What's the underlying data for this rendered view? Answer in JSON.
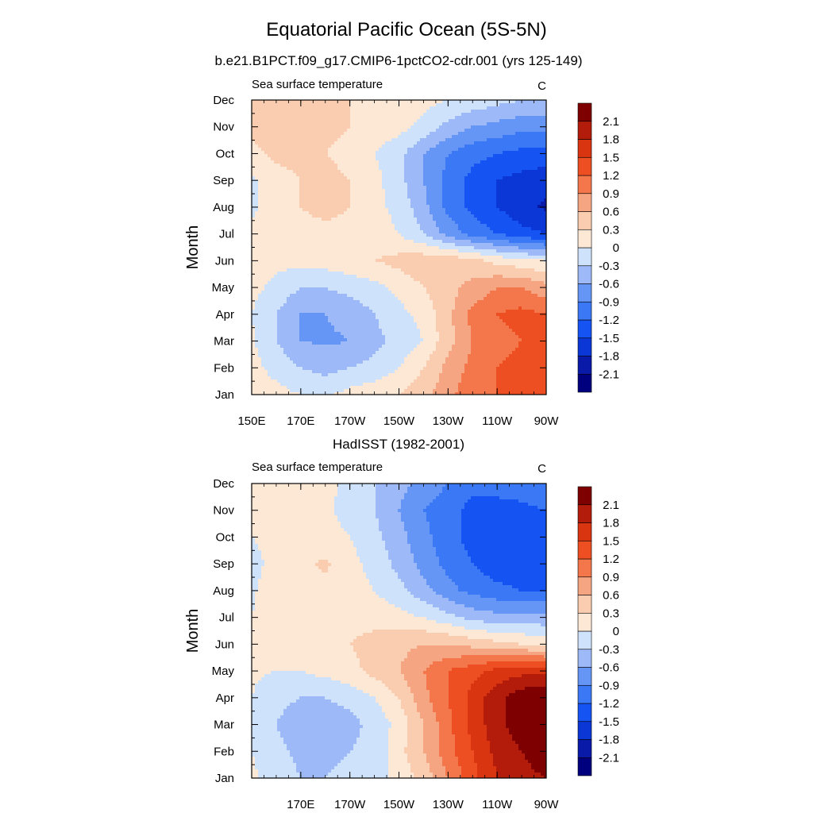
{
  "figure": {
    "title": "Equatorial Pacific Ocean (5S-5N)"
  },
  "chart_data": [
    {
      "type": "heatmap",
      "title": "b.e21.B1PCT.f09_g17.CMIP6-1pctCO2-cdr.001 (yrs 125-149)",
      "left_string": "Sea surface temperature",
      "right_string": "C",
      "xlabel": "",
      "ylabel": "Month",
      "x_values": [
        150,
        160,
        170,
        180,
        190,
        200,
        210,
        220,
        230,
        240,
        250,
        260,
        270
      ],
      "xlim": [
        150,
        270
      ],
      "x_ticks": [
        150,
        170,
        190,
        210,
        230,
        250,
        270
      ],
      "x_tick_labels": [
        "150E",
        "170E",
        "170W",
        "150W",
        "130W",
        "110W",
        "90W"
      ],
      "y_tick_labels": [
        "Jan",
        "Feb",
        "Mar",
        "Apr",
        "May",
        "Jun",
        "Jul",
        "Aug",
        "Sep",
        "Oct",
        "Nov",
        "Dec"
      ],
      "z": [
        [
          0.15,
          0.1,
          0.0,
          -0.05,
          0.1,
          0.2,
          0.3,
          0.5,
          0.8,
          1.1,
          1.2,
          1.3,
          1.3
        ],
        [
          0.1,
          -0.1,
          -0.3,
          -0.4,
          -0.3,
          -0.2,
          0.0,
          0.3,
          0.7,
          1.0,
          1.2,
          1.3,
          1.3
        ],
        [
          0.05,
          -0.3,
          -0.6,
          -0.65,
          -0.6,
          -0.4,
          -0.2,
          0.0,
          0.5,
          0.9,
          1.1,
          1.2,
          1.2
        ],
        [
          0.0,
          -0.3,
          -0.6,
          -0.6,
          -0.5,
          -0.3,
          -0.1,
          0.1,
          0.5,
          1.0,
          1.2,
          1.3,
          1.2
        ],
        [
          0.1,
          -0.1,
          -0.3,
          -0.3,
          -0.2,
          -0.1,
          0.1,
          0.3,
          0.5,
          0.7,
          0.9,
          0.9,
          0.7
        ],
        [
          0.15,
          0.1,
          0.1,
          0.15,
          0.2,
          0.3,
          0.4,
          0.5,
          0.5,
          0.4,
          0.2,
          0.1,
          0.0
        ],
        [
          0.05,
          0.15,
          0.2,
          0.2,
          0.2,
          0.15,
          0.0,
          -0.3,
          -0.7,
          -1.0,
          -1.2,
          -1.4,
          -1.5
        ],
        [
          -0.05,
          0.15,
          0.3,
          0.4,
          0.3,
          0.1,
          -0.1,
          -0.5,
          -1.0,
          -1.3,
          -1.5,
          -1.7,
          -1.85
        ],
        [
          -0.05,
          0.15,
          0.3,
          0.4,
          0.3,
          0.1,
          -0.2,
          -0.6,
          -1.0,
          -1.3,
          -1.5,
          -1.6,
          -1.7
        ],
        [
          0.2,
          0.4,
          0.4,
          0.3,
          0.2,
          0.0,
          -0.2,
          -0.6,
          -0.9,
          -1.1,
          -1.2,
          -1.3,
          -1.3
        ],
        [
          0.4,
          0.5,
          0.5,
          0.4,
          0.3,
          0.2,
          0.1,
          -0.1,
          -0.4,
          -0.6,
          -0.7,
          -0.8,
          -0.8
        ],
        [
          0.4,
          0.4,
          0.4,
          0.4,
          0.3,
          0.2,
          0.2,
          0.1,
          0.0,
          -0.1,
          -0.2,
          -0.3,
          -0.3
        ]
      ]
    },
    {
      "type": "heatmap",
      "title": "HadISST (1982-2001)",
      "left_string": "Sea surface temperature",
      "right_string": "C",
      "xlabel": "",
      "ylabel": "Month",
      "x_values": [
        150,
        160,
        170,
        180,
        190,
        200,
        210,
        220,
        230,
        240,
        250,
        260,
        270
      ],
      "xlim": [
        150,
        270
      ],
      "x_ticks": [
        170,
        190,
        210,
        230,
        250,
        270
      ],
      "x_tick_labels": [
        "170E",
        "170W",
        "150W",
        "130W",
        "110W",
        "90W"
      ],
      "y_tick_labels": [
        "Jan",
        "Feb",
        "Mar",
        "Apr",
        "May",
        "Jun",
        "Jul",
        "Aug",
        "Sep",
        "Oct",
        "Nov",
        "Dec"
      ],
      "z": [
        [
          0.05,
          -0.1,
          -0.3,
          -0.3,
          -0.2,
          -0.1,
          0.1,
          0.4,
          0.9,
          1.4,
          1.8,
          2.0,
          2.1
        ],
        [
          0.0,
          -0.2,
          -0.4,
          -0.4,
          -0.3,
          -0.2,
          0.2,
          0.6,
          1.1,
          1.5,
          1.9,
          2.1,
          2.3
        ],
        [
          -0.05,
          -0.3,
          -0.5,
          -0.5,
          -0.4,
          -0.2,
          0.1,
          0.6,
          1.1,
          1.6,
          2.0,
          2.3,
          2.5
        ],
        [
          0.0,
          -0.2,
          -0.3,
          -0.3,
          -0.2,
          0.0,
          0.3,
          0.8,
          1.2,
          1.6,
          2.0,
          2.3,
          2.4
        ],
        [
          0.05,
          0.0,
          0.0,
          0.1,
          0.2,
          0.4,
          0.6,
          0.9,
          1.2,
          1.4,
          1.6,
          1.7,
          1.7
        ],
        [
          0.1,
          0.15,
          0.2,
          0.2,
          0.3,
          0.4,
          0.5,
          0.6,
          0.6,
          0.5,
          0.4,
          0.3,
          0.2
        ],
        [
          0.0,
          0.15,
          0.2,
          0.2,
          0.2,
          0.2,
          0.1,
          0.0,
          -0.2,
          -0.4,
          -0.5,
          -0.5,
          -0.5
        ],
        [
          -0.05,
          0.2,
          0.2,
          0.2,
          0.1,
          0.0,
          -0.2,
          -0.5,
          -0.8,
          -1.0,
          -1.1,
          -1.2,
          -1.2
        ],
        [
          -0.1,
          0.1,
          0.25,
          0.35,
          0.1,
          -0.1,
          -0.4,
          -0.7,
          -1.0,
          -1.2,
          -1.4,
          -1.5,
          -1.5
        ],
        [
          0.0,
          0.1,
          0.2,
          0.1,
          0.0,
          -0.2,
          -0.5,
          -0.8,
          -1.1,
          -1.3,
          -1.4,
          -1.4,
          -1.4
        ],
        [
          0.1,
          0.2,
          0.15,
          0.05,
          -0.1,
          -0.3,
          -0.6,
          -0.9,
          -1.1,
          -1.3,
          -1.3,
          -1.3,
          -1.2
        ],
        [
          0.2,
          0.2,
          0.2,
          0.1,
          -0.1,
          -0.3,
          -0.5,
          -0.7,
          -0.9,
          -1.1,
          -1.1,
          -1.0,
          -0.9
        ]
      ]
    }
  ],
  "colorbar": {
    "levels": [
      -2.1,
      -1.8,
      -1.5,
      -1.2,
      -0.9,
      -0.6,
      -0.3,
      0,
      0.3,
      0.6,
      0.9,
      1.2,
      1.5,
      1.8,
      2.1
    ],
    "colors": [
      "#00007f",
      "#0a1aa8",
      "#0a37d6",
      "#1553f2",
      "#3a78f5",
      "#6595f5",
      "#9db9f8",
      "#cfe2fb",
      "#fde8d6",
      "#fbcdb0",
      "#f6a583",
      "#f3774a",
      "#ee4f22",
      "#d93510",
      "#b31c0a",
      "#7f0000"
    ]
  }
}
